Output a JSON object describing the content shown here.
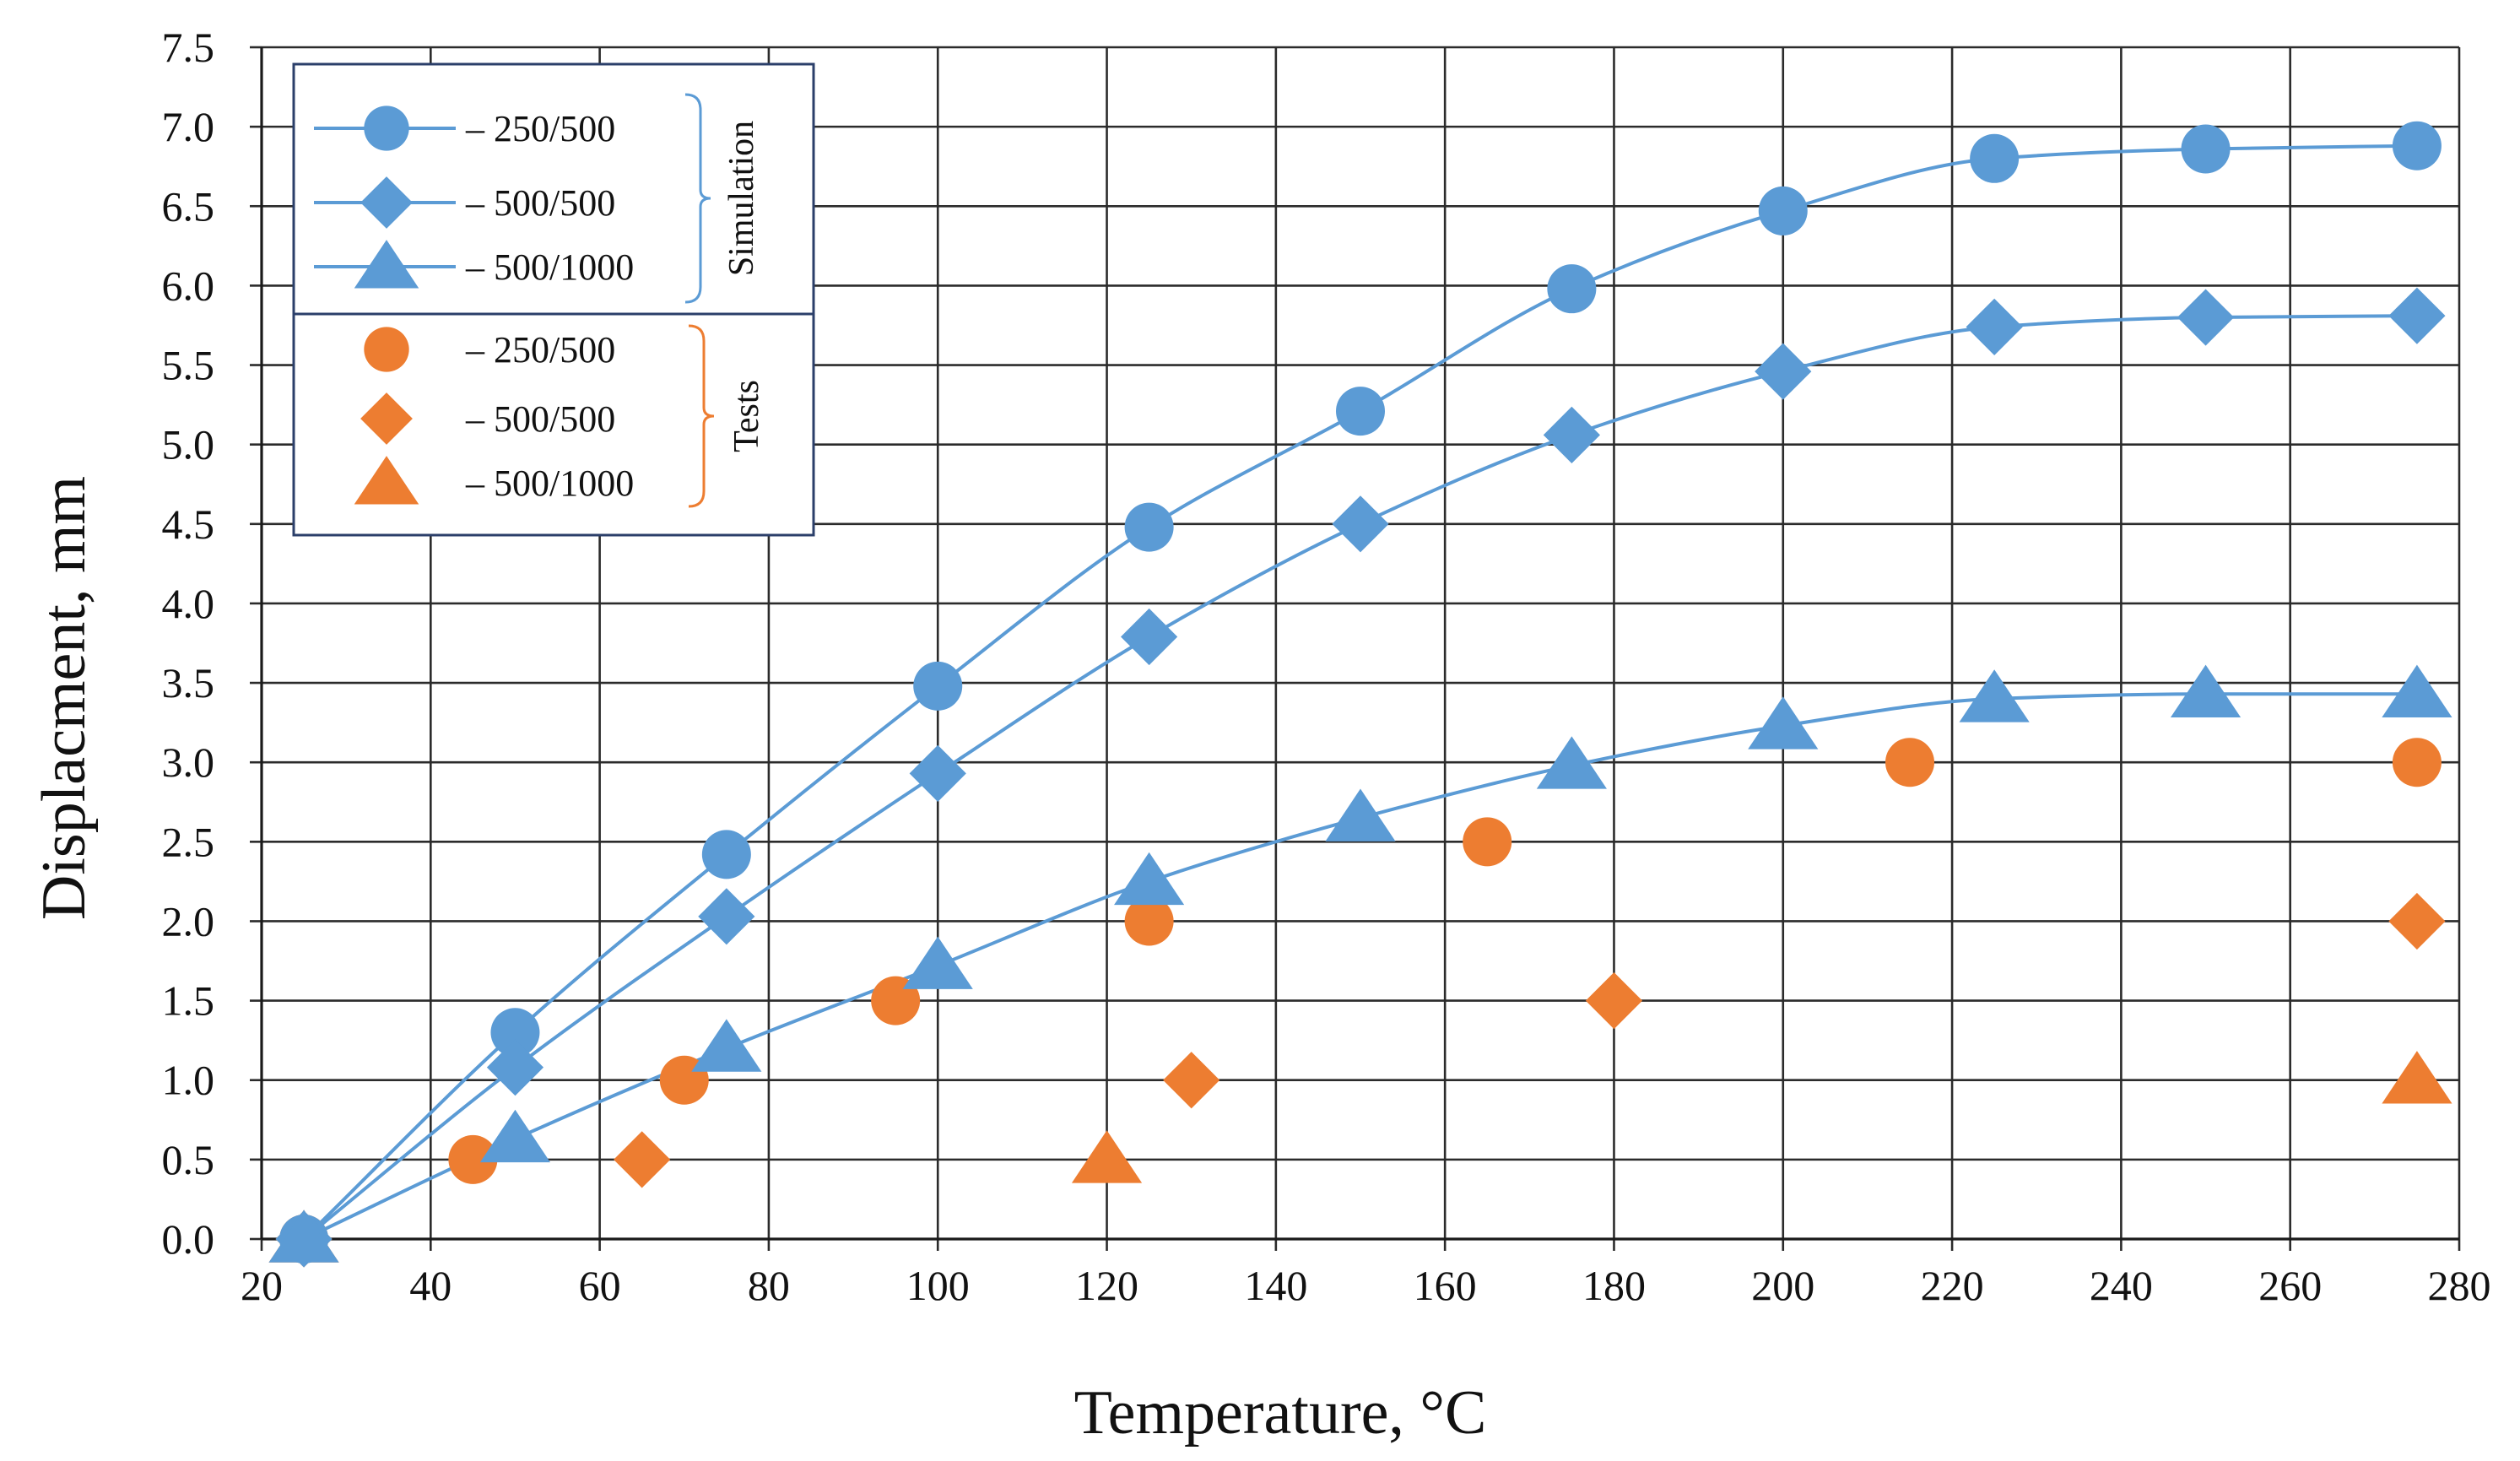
{
  "chart_data": {
    "type": "line",
    "title": "",
    "xlabel": "Temperature, °C",
    "ylabel": "Displacment, mm",
    "xlim": [
      20,
      280
    ],
    "ylim": [
      0.0,
      7.5
    ],
    "x_ticks": [
      "20",
      "40",
      "60",
      "80",
      "100",
      "120",
      "140",
      "160",
      "180",
      "200",
      "220",
      "240",
      "260",
      "280"
    ],
    "y_ticks": [
      "0.0",
      "0.5",
      "1.0",
      "1.5",
      "2.0",
      "2.5",
      "3.0",
      "3.5",
      "4.0",
      "4.5",
      "5.0",
      "5.5",
      "6.0",
      "6.5",
      "7.0",
      "7.5"
    ],
    "grid": true,
    "legend_position": "top-left",
    "colors": {
      "simulation": "#5b9bd5",
      "tests": "#ed7d31",
      "grid": "#2b2b2b"
    },
    "legend_groups": [
      {
        "name": "Simulation",
        "entries": [
          {
            "label": "– 250/500",
            "marker": "circle-icon",
            "line": true
          },
          {
            "label": "– 500/500",
            "marker": "diamond-icon",
            "line": true
          },
          {
            "label": "– 500/1000",
            "marker": "triangle-icon",
            "line": true
          }
        ]
      },
      {
        "name": "Tests",
        "entries": [
          {
            "label": "– 250/500",
            "marker": "circle-icon",
            "line": false
          },
          {
            "label": "– 500/500",
            "marker": "diamond-icon",
            "line": false
          },
          {
            "label": "– 500/1000",
            "marker": "triangle-icon",
            "line": false
          }
        ]
      }
    ],
    "series": [
      {
        "name": "Simulation 250/500",
        "group": "Simulation",
        "marker": "circle",
        "line": true,
        "x": [
          25,
          50,
          75,
          100,
          125,
          150,
          175,
          200,
          225,
          250,
          275
        ],
        "y": [
          0.0,
          1.3,
          2.42,
          3.48,
          4.48,
          5.21,
          5.98,
          6.47,
          6.8,
          6.86,
          6.88
        ]
      },
      {
        "name": "Simulation 500/500",
        "group": "Simulation",
        "marker": "diamond",
        "line": true,
        "x": [
          25,
          50,
          75,
          100,
          125,
          150,
          175,
          200,
          225,
          250,
          275
        ],
        "y": [
          0.0,
          1.08,
          2.03,
          2.93,
          3.79,
          4.5,
          5.06,
          5.46,
          5.74,
          5.8,
          5.81
        ]
      },
      {
        "name": "Simulation 500/1000",
        "group": "Simulation",
        "marker": "triangle",
        "line": true,
        "x": [
          25,
          50,
          75,
          100,
          125,
          150,
          175,
          200,
          225,
          250,
          275
        ],
        "y": [
          0.0,
          0.63,
          1.2,
          1.72,
          2.25,
          2.65,
          2.98,
          3.23,
          3.4,
          3.43,
          3.43
        ]
      },
      {
        "name": "Tests 250/500",
        "group": "Tests",
        "marker": "circle",
        "line": false,
        "x": [
          25,
          45,
          70,
          95,
          125,
          165,
          215,
          275
        ],
        "y": [
          0.0,
          0.5,
          1.0,
          1.5,
          2.0,
          2.5,
          3.0,
          3.0
        ]
      },
      {
        "name": "Tests 500/500",
        "group": "Tests",
        "marker": "diamond",
        "line": false,
        "x": [
          25,
          65,
          130,
          180,
          275
        ],
        "y": [
          0.0,
          0.5,
          1.0,
          1.5,
          2.0
        ]
      },
      {
        "name": "Tests 500/1000",
        "group": "Tests",
        "marker": "triangle",
        "line": false,
        "x": [
          25,
          120,
          275
        ],
        "y": [
          0.0,
          0.5,
          1.0
        ]
      }
    ]
  }
}
